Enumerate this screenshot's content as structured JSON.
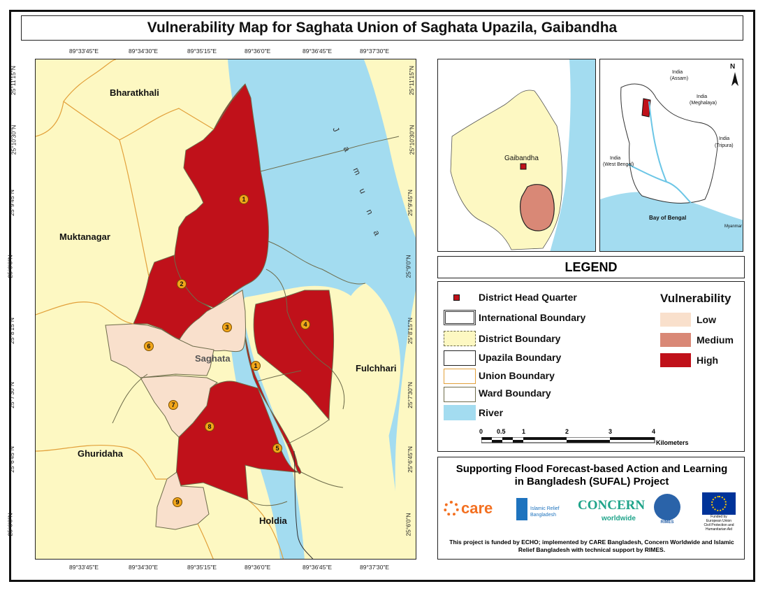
{
  "title": "Vulnerability Map for Saghata Union of Saghata Upazila, Gaibandha",
  "map": {
    "lon_labels": [
      "89°33'45\"E",
      "89°34'30\"E",
      "89°35'15\"E",
      "89°36'0\"E",
      "89°36'45\"E",
      "89°37'30\"E"
    ],
    "lat_labels": [
      "25°11'15\"N",
      "25°10'30\"N",
      "25°9'45\"N",
      "25°9'0\"N",
      "25°8'15\"N",
      "25°7'30\"N",
      "25°6'45\"N",
      "25°6'0\"N"
    ],
    "place_names": {
      "bharatkhali": "Bharatkhali",
      "muktanagar": "Muktanagar",
      "ghuridaha": "Ghuridaha",
      "holdia": "Holdia",
      "fulchhari": "Fulchhari",
      "saghata": "Saghata"
    },
    "river_label": [
      "J",
      "a",
      "m",
      "u",
      "n",
      "a"
    ],
    "wards": [
      {
        "no": "1",
        "level": "High"
      },
      {
        "no": "2",
        "level": "High"
      },
      {
        "no": "3",
        "level": "Low"
      },
      {
        "no": "4",
        "level": "High"
      },
      {
        "no": "1",
        "level": "High"
      },
      {
        "no": "5",
        "level": "High"
      },
      {
        "no": "6",
        "level": "Low"
      },
      {
        "no": "7",
        "level": "Low"
      },
      {
        "no": "8",
        "level": "High"
      },
      {
        "no": "9",
        "level": "Low"
      }
    ]
  },
  "inset_district": {
    "label": "Gaibandha"
  },
  "inset_country": {
    "labels": [
      "India",
      "(Assam)",
      "India",
      "(Meghalaya)",
      "India",
      "(Tripura)",
      "India",
      "(West Bengal)",
      "Bay of Bengal",
      "Myanmar"
    ],
    "north": "N"
  },
  "legend": {
    "title": "LEGEND",
    "items": [
      "District Head Quarter",
      "International Boundary",
      "District Boundary",
      "Upazila Boundary",
      "Union Boundary",
      "Ward Boundary",
      "River"
    ],
    "vulnerability_title": "Vulnerability",
    "vulnerability": [
      {
        "label": "Low",
        "color": "#f9e0cc"
      },
      {
        "label": "Medium",
        "color": "#d98876"
      },
      {
        "label": "High",
        "color": "#c0111a"
      }
    ],
    "scale": {
      "ticks": [
        "0",
        "0.5",
        "1",
        "2",
        "3",
        "4"
      ],
      "unit": "Kilometers"
    }
  },
  "funding": {
    "heading": "Supporting Flood Forecast-based Action and Learning in Bangladesh (SUFAL) Project",
    "logos": [
      "care",
      "Islamic Relief",
      "Bangladesh",
      "CONCERN",
      "worldwide",
      "RIMES",
      "Funded by",
      "European Union",
      "Civil Protection and",
      "Humanitarian Aid"
    ],
    "footnote": "This project is funded by ECHO; implemented by CARE Bangladesh, Concern Worldwide and Islamic Relief Bangladesh with technical support by RIMES."
  },
  "colors": {
    "land": "#fdf8c2",
    "river": "#a3dcf0",
    "high": "#c0111a",
    "medium": "#d98876",
    "low": "#f9e0cc",
    "union_boundary": "#e2a03a",
    "ward_boundary": "#6d6b4a"
  }
}
